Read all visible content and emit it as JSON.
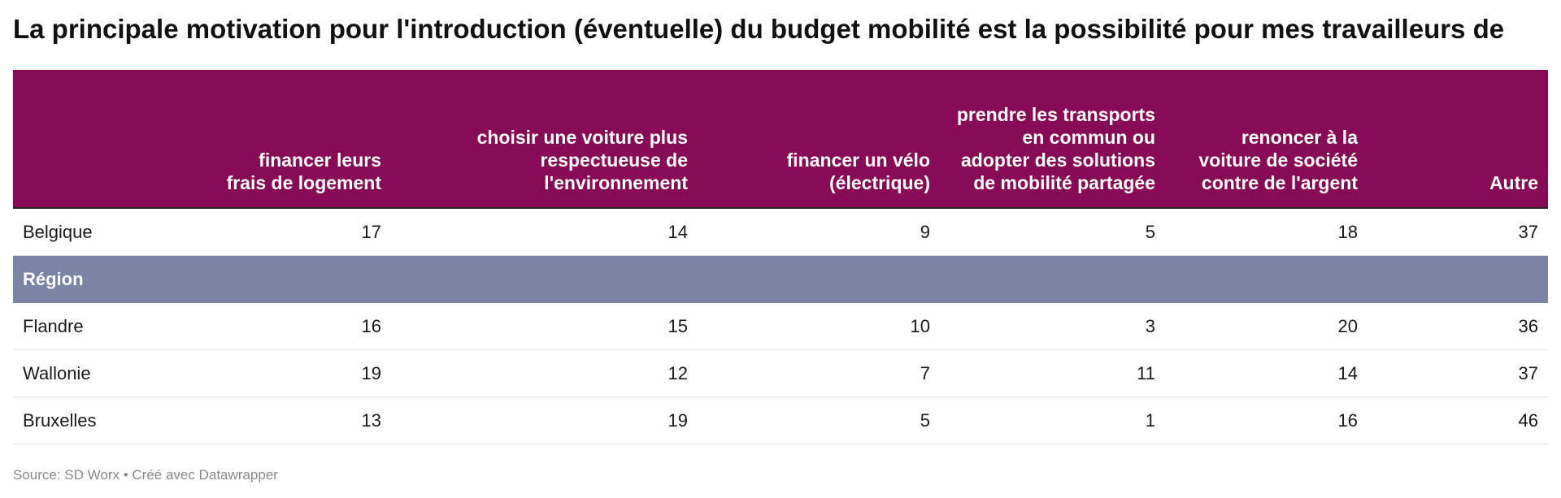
{
  "title": "La principale motivation pour l'introduction (éventuelle) du budget mobilité est la possibilité pour mes travailleurs de",
  "source": "Source: SD Worx • Créé avec Datawrapper",
  "colors": {
    "header_bg": "#870b54",
    "group_bg": "#7b85a3"
  },
  "chart_data": {
    "type": "table",
    "columns": [
      "",
      "financer leurs frais de logement",
      "choisir une voiture plus respectueuse de l'environnement",
      "financer un vélo (électrique)",
      "prendre les transports en commun ou adopter des solutions de mobilité partagée",
      "renoncer à la voiture de société contre de l'argent",
      "Autre"
    ],
    "rows": [
      {
        "label": "Belgique",
        "values": [
          "17",
          "14",
          "9",
          "5",
          "18",
          "37"
        ]
      },
      {
        "label": "Région",
        "group": true
      },
      {
        "label": "Flandre",
        "values": [
          "16",
          "15",
          "10",
          "3",
          "20",
          "36"
        ]
      },
      {
        "label": "Wallonie",
        "values": [
          "19",
          "12",
          "7",
          "11",
          "14",
          "37"
        ]
      },
      {
        "label": "Bruxelles",
        "values": [
          "13",
          "19",
          "5",
          "1",
          "16",
          "46"
        ]
      }
    ]
  }
}
